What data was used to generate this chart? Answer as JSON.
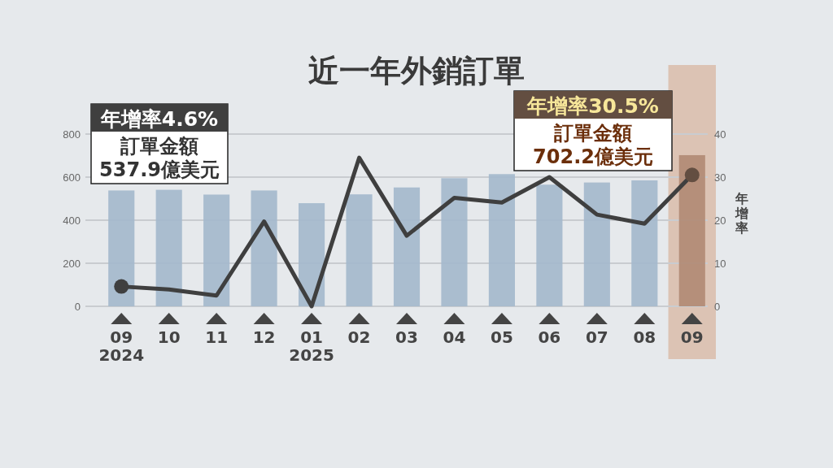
{
  "chart_data": {
    "type": "bar",
    "title": "近一年外銷訂單",
    "y2label": "年增率",
    "categories": [
      "09\n2024",
      "10",
      "11",
      "12",
      "01\n2025",
      "02",
      "03",
      "04",
      "05",
      "06",
      "07",
      "08",
      "09"
    ],
    "series": [
      {
        "colors": [
          "#a3b8cc",
          "#a3b8cc",
          "#a3b8cc",
          "#a3b8cc",
          "#a3b8cc",
          "#a3b8cc",
          "#a3b8cc",
          "#a3b8cc",
          "#a3b8cc",
          "#a3b8cc",
          "#a3b8cc",
          "#a3b8cc",
          "#b08a73"
        ],
        "values": [
          538,
          541,
          519,
          538,
          479,
          520,
          552,
          595,
          614,
          565,
          575,
          585,
          702
        ]
      },
      {
        "type": "line",
        "axis": "y2",
        "color": "#3f3f3f",
        "values": [
          4.6,
          3.9,
          2.5,
          19.7,
          0,
          34.5,
          16.4,
          25.2,
          24.1,
          30,
          21.3,
          19.2,
          30.5
        ]
      }
    ],
    "ylim": [
      0,
      800
    ],
    "yticks": [
      0,
      200,
      400,
      600,
      800
    ],
    "y2lim": [
      0,
      40
    ],
    "y2ticks": [
      0,
      10,
      20,
      30,
      40
    ],
    "grid": "y",
    "line_style": "solid",
    "bands": [
      {
        "axis": "x",
        "from": "09",
        "to": "09",
        "color": "#d9b9a6"
      }
    ],
    "annotations": [
      "年增率4.6%\n訂單金額\n537.9億美元",
      "年增率30.5%\n訂單金額\n702.2億美元"
    ]
  }
}
